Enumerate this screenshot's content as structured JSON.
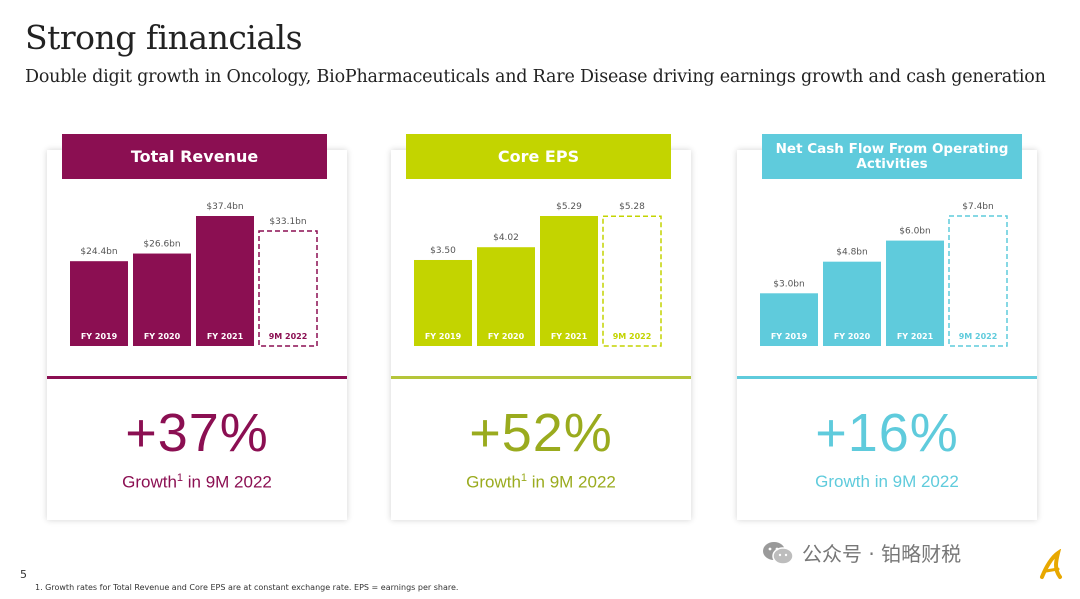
{
  "title": "Strong financials",
  "subtitle": "Double digit growth in Oncology, BioPharmaceuticals and Rare Disease driving earnings growth and cash generation",
  "page_number": "5",
  "footnote": "1. Growth rates for Total Revenue and Core EPS are at constant exchange rate.   EPS = earnings per share.",
  "watermark": "公众号 · 铂略财税",
  "cards": [
    {
      "header": "Total Revenue",
      "growth_pct": "+37%",
      "growth_label": "Growth",
      "growth_sup": "1",
      "growth_suffix": " in 9M 2022"
    },
    {
      "header": "Core EPS",
      "growth_pct": "+52%",
      "growth_label": "Growth",
      "growth_sup": "1",
      "growth_suffix": " in 9M 2022"
    },
    {
      "header": "Net Cash Flow From Operating Activities",
      "growth_pct": "+16%",
      "growth_label": "Growth in 9M 2022",
      "growth_sup": "",
      "growth_suffix": ""
    }
  ],
  "colors": {
    "revenue": "#8b0f52",
    "eps": "#c3d400",
    "cash": "#5fcbdc"
  },
  "chart_data": [
    {
      "type": "bar",
      "title": "Total Revenue",
      "categories": [
        "FY 2019",
        "FY 2020",
        "FY 2021",
        "9M 2022"
      ],
      "values": [
        24.4,
        26.6,
        37.4,
        33.1
      ],
      "value_labels": [
        "$24.4bn",
        "$26.6bn",
        "$37.4bn",
        "$33.1bn"
      ],
      "dashed": [
        false,
        false,
        false,
        true
      ],
      "ylim": [
        0,
        37.4
      ]
    },
    {
      "type": "bar",
      "title": "Core EPS",
      "categories": [
        "FY 2019",
        "FY 2020",
        "FY 2021",
        "9M 2022"
      ],
      "values": [
        3.5,
        4.02,
        5.29,
        5.28
      ],
      "value_labels": [
        "$3.50",
        "$4.02",
        "$5.29",
        "$5.28"
      ],
      "dashed": [
        false,
        false,
        false,
        true
      ],
      "ylim": [
        0,
        5.29
      ]
    },
    {
      "type": "bar",
      "title": "Net Cash Flow From Operating Activities",
      "categories": [
        "FY 2019",
        "FY 2020",
        "FY 2021",
        "9M 2022"
      ],
      "values": [
        3.0,
        4.8,
        6.0,
        7.4
      ],
      "value_labels": [
        "$3.0bn",
        "$4.8bn",
        "$6.0bn",
        "$7.4bn"
      ],
      "dashed": [
        false,
        false,
        false,
        true
      ],
      "ylim": [
        0,
        7.4
      ]
    }
  ]
}
